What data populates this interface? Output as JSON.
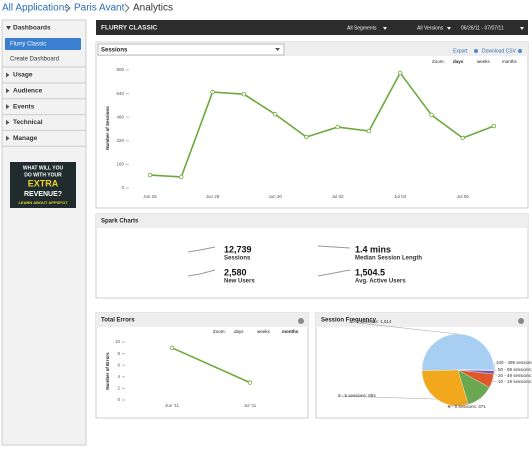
{
  "breadcrumb": [
    "All Applications",
    "Paris Avant",
    "Analytics"
  ],
  "sidebar": {
    "dashboards": "Dashboards",
    "items": [
      "Flurry Classic",
      "Create Dashboard"
    ],
    "sections": [
      "Usage",
      "Audience",
      "Events",
      "Technical",
      "Manage"
    ],
    "ad": [
      "WHAT WILL YOU",
      "DO WITH YOUR",
      "EXTRA",
      "REVENUE?",
      "LEARN ABOUT APPSPOT"
    ]
  },
  "header": {
    "title": "FLURRY CLASSIC",
    "segments": "All Segments",
    "versions": "All Versions",
    "dates": "06/26/11 - 07/07/11"
  },
  "sessions": {
    "type": "line",
    "title": "Sessions",
    "export": "Export",
    "download": "Download CSV",
    "zoom": [
      "Zoom:",
      "days",
      "weeks",
      "months"
    ],
    "ylabel": "Number of Sessions",
    "categories": [
      "Jun 26",
      null,
      "Jun 28",
      null,
      "Jun 30",
      null,
      "Jul 02",
      null,
      "Jul 04",
      null,
      "Jul 06",
      null
    ],
    "values": [
      88,
      75,
      650,
      636,
      500,
      346,
      413,
      386,
      780,
      495,
      339,
      420
    ],
    "ylim": [
      0,
      800
    ],
    "yticks": [
      0,
      160,
      320,
      480,
      640,
      800
    ],
    "color": "#6aaa3a"
  },
  "spark": {
    "title": "Spark Charts",
    "items": [
      {
        "value": "12,739",
        "label": "Sessions"
      },
      {
        "value": "1.4 mins",
        "label": "Median Session Length"
      },
      {
        "value": "2,580",
        "label": "New Users"
      },
      {
        "value": "1,504.5",
        "label": "Avg. Active Users"
      }
    ]
  },
  "errors": {
    "type": "line",
    "title": "Total Errors",
    "zoom": [
      "Zoom:",
      "days",
      "weeks",
      "months"
    ],
    "ylabel": "Number of Errors",
    "categories": [
      "Jun '11",
      "Jul '11"
    ],
    "values": [
      9,
      3
    ],
    "ylim": [
      0,
      10
    ],
    "yticks": [
      0,
      2,
      4,
      6,
      8,
      10
    ],
    "color": "#6aaa3a"
  },
  "frequency": {
    "type": "pie",
    "title": "Session Frequency",
    "labels": [
      "1 - 2 sessions: 1,514",
      "3 - 5 sessions: 884",
      "6 - 9 sessions: 371",
      "10 - 19 sessions: 187",
      "20 - 49 sessions: 47",
      "50 - 99 sessions: 5",
      "100 - 499 sessions: 3"
    ],
    "values": [
      1514,
      884,
      371,
      187,
      47,
      5,
      3
    ],
    "colors": [
      "#a8cff2",
      "#f2a81d",
      "#6aa84f",
      "#e0582a",
      "#7a5ab0",
      "#4a90c0",
      "#c0c040"
    ]
  }
}
